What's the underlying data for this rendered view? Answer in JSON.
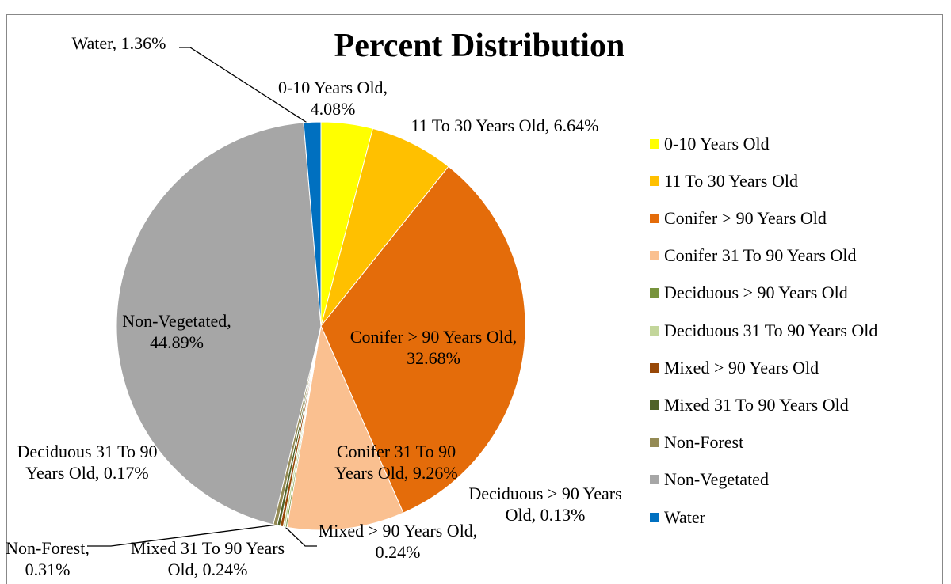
{
  "chart_data": {
    "type": "pie",
    "title": "Percent Distribution",
    "categories": [
      "0-10 Years Old",
      "11 To 30 Years Old",
      "Conifer > 90 Years Old",
      "Conifer 31 To 90 Years Old",
      "Deciduous > 90 Years Old",
      "Deciduous 31 To 90 Years Old",
      "Mixed > 90 Years Old",
      "Mixed 31 To 90 Years Old",
      "Non-Forest",
      "Non-Vegetated",
      "Water"
    ],
    "values": [
      4.08,
      6.64,
      32.68,
      9.26,
      0.13,
      0.17,
      0.24,
      0.24,
      0.31,
      44.89,
      1.36
    ],
    "value_labels": [
      "0-10 Years Old, 4.08%",
      "11 To 30 Years Old, 6.64%",
      "Conifer > 90 Years Old, 32.68%",
      "Conifer 31 To 90 Years Old, 9.26%",
      "Deciduous > 90 Years Old, 0.13%",
      "Deciduous 31 To 90 Years Old, 0.17%",
      "Mixed > 90 Years Old, 0.24%",
      "Mixed 31 To 90 Years Old, 0.24%",
      "Non-Forest, 0.31%",
      "Non-Vegetated, 44.89%",
      "Water, 1.36%"
    ],
    "colors": [
      "#ffff00",
      "#ffc000",
      "#e46c0a",
      "#fac090",
      "#77933c",
      "#c3d69b",
      "#984807",
      "#4f6228",
      "#948a54",
      "#a6a6a6",
      "#0070c0"
    ],
    "legend": "right"
  }
}
